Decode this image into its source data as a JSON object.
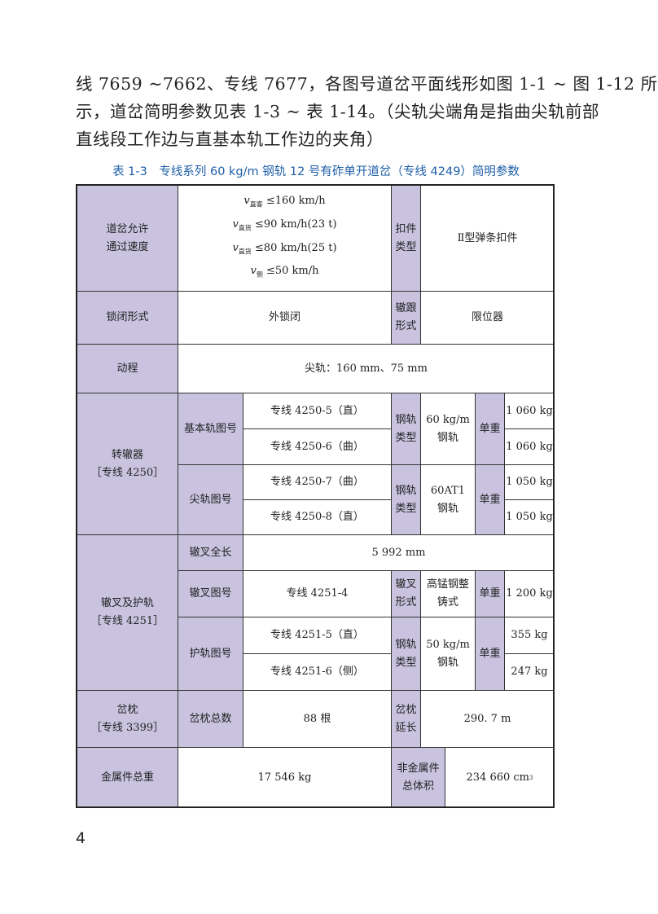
{
  "paragraph": [
    "线 7659  ~7662、专线 7677，各图号道岔平面线形如图 1-1 ~ 图 1-12 所",
    "示，道岔简明参数见表 1-3 ~ 表 1-14。（尖轨尖端角是指曲尖轨前部",
    "直线段工作边与直基本轨工作边的夹角）"
  ],
  "table": {
    "caption": "表 1-3　专线系列 60 kg/m 钢轨 12 号有砟单开道岔（专线 4249）简明参数",
    "header_color": "#c9c3e0",
    "speed_label": "道岔允许\n通过速度",
    "speeds": [
      {
        "sub": "直客",
        "text": "≤160 km/h"
      },
      {
        "sub": "直货",
        "text": "≤90 km/h(23 t)"
      },
      {
        "sub": "直货",
        "text": "≤80 km/h(25 t)"
      },
      {
        "sub": "侧",
        "text": "≤50 km/h"
      }
    ],
    "fastener_label": "扣件\n类型",
    "fastener_value": "Ⅱ型弹条扣件",
    "lock_label": "锁闭形式",
    "lock_value": "外锁闭",
    "heel_label": "辙跟\n形式",
    "heel_value": "限位器",
    "stroke_label": "动程",
    "stroke_value": "尖轨：160 mm、75 mm",
    "switch_label": "转辙器\n［专线 4250］",
    "stock_rail_label": "基本轨图号",
    "stock_rail_1": "专线 4250-5（直）",
    "stock_rail_2": "专线 4250-6（曲）",
    "rail_type_label_1": "钢轨\n类型",
    "rail_type_1": "60 kg/m\n钢轨",
    "unit_weight_label_1": "单重",
    "stock_weight_1": "1 060 kg",
    "stock_weight_2": "1 060 kg",
    "point_rail_label": "尖轨图号",
    "point_rail_1": "专线 4250-7（曲）",
    "point_rail_2": "专线 4250-8（直）",
    "rail_type_label_2": "钢轨\n类型",
    "rail_type_2": "60AT1\n钢轨",
    "unit_weight_label_2": "单重",
    "point_weight_1": "1 050 kg",
    "point_weight_2": "1 050 kg",
    "frog_label": "辙叉及护轨\n［专线 4251］",
    "frog_length_label": "辙叉全长",
    "frog_length": "5 992 mm",
    "frog_drawing_label": "辙叉图号",
    "frog_drawing": "专线 4251-4",
    "frog_form_label": "辙叉\n形式",
    "frog_form": "高锰钢整\n铸式",
    "unit_weight_label_3": "单重",
    "frog_weight": "1 200 kg",
    "guard_label": "护轨图号",
    "guard_1": "专线 4251-5（直）",
    "guard_2": "专线 4251-6（侧）",
    "rail_type_label_3": "钢轨\n类型",
    "rail_type_3": "50 kg/m\n钢轨",
    "unit_weight_label_4": "单重",
    "guard_weight_1": "355 kg",
    "guard_weight_2": "247 kg",
    "sleeper_label": "岔枕\n［专线 3399］",
    "sleeper_count_label": "岔枕总数",
    "sleeper_count": "88 根",
    "sleeper_length_label": "岔枕\n延长",
    "sleeper_length": "290. 7 m",
    "metal_label": "金属件总重",
    "metal_value": "17 546 kg",
    "nonmetal_label": "非金属件\n总体积",
    "nonmetal_value": "234 660 cm",
    "nonmetal_unit_sup": "3"
  },
  "page_number": "4"
}
